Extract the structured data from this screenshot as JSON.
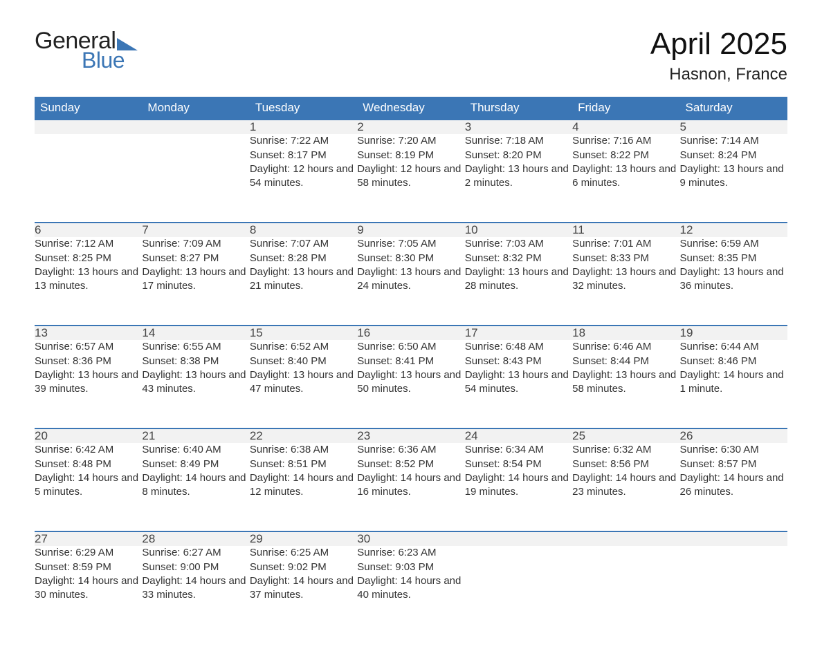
{
  "brand": {
    "word1": "General",
    "word2": "Blue",
    "color_dark": "#222222",
    "color_blue": "#3b76b5"
  },
  "title": {
    "month": "April 2025",
    "location": "Hasnon, France"
  },
  "colors": {
    "header_bg": "#3b76b5",
    "header_text": "#ffffff",
    "daynum_bg": "#f2f2f2",
    "daynum_border": "#3b76b5",
    "body_text": "#333333",
    "page_bg": "#ffffff"
  },
  "fonts": {
    "family": "Segoe UI, Arial, sans-serif",
    "title_size_pt": 33,
    "location_size_pt": 18,
    "header_size_pt": 13,
    "daynum_size_pt": 13,
    "cell_size_pt": 11
  },
  "weekdays": [
    "Sunday",
    "Monday",
    "Tuesday",
    "Wednesday",
    "Thursday",
    "Friday",
    "Saturday"
  ],
  "weeks": [
    [
      {
        "n": "",
        "sr": "",
        "ss": "",
        "dl": ""
      },
      {
        "n": "",
        "sr": "",
        "ss": "",
        "dl": ""
      },
      {
        "n": "1",
        "sr": "Sunrise: 7:22 AM",
        "ss": "Sunset: 8:17 PM",
        "dl": "Daylight: 12 hours and 54 minutes."
      },
      {
        "n": "2",
        "sr": "Sunrise: 7:20 AM",
        "ss": "Sunset: 8:19 PM",
        "dl": "Daylight: 12 hours and 58 minutes."
      },
      {
        "n": "3",
        "sr": "Sunrise: 7:18 AM",
        "ss": "Sunset: 8:20 PM",
        "dl": "Daylight: 13 hours and 2 minutes."
      },
      {
        "n": "4",
        "sr": "Sunrise: 7:16 AM",
        "ss": "Sunset: 8:22 PM",
        "dl": "Daylight: 13 hours and 6 minutes."
      },
      {
        "n": "5",
        "sr": "Sunrise: 7:14 AM",
        "ss": "Sunset: 8:24 PM",
        "dl": "Daylight: 13 hours and 9 minutes."
      }
    ],
    [
      {
        "n": "6",
        "sr": "Sunrise: 7:12 AM",
        "ss": "Sunset: 8:25 PM",
        "dl": "Daylight: 13 hours and 13 minutes."
      },
      {
        "n": "7",
        "sr": "Sunrise: 7:09 AM",
        "ss": "Sunset: 8:27 PM",
        "dl": "Daylight: 13 hours and 17 minutes."
      },
      {
        "n": "8",
        "sr": "Sunrise: 7:07 AM",
        "ss": "Sunset: 8:28 PM",
        "dl": "Daylight: 13 hours and 21 minutes."
      },
      {
        "n": "9",
        "sr": "Sunrise: 7:05 AM",
        "ss": "Sunset: 8:30 PM",
        "dl": "Daylight: 13 hours and 24 minutes."
      },
      {
        "n": "10",
        "sr": "Sunrise: 7:03 AM",
        "ss": "Sunset: 8:32 PM",
        "dl": "Daylight: 13 hours and 28 minutes."
      },
      {
        "n": "11",
        "sr": "Sunrise: 7:01 AM",
        "ss": "Sunset: 8:33 PM",
        "dl": "Daylight: 13 hours and 32 minutes."
      },
      {
        "n": "12",
        "sr": "Sunrise: 6:59 AM",
        "ss": "Sunset: 8:35 PM",
        "dl": "Daylight: 13 hours and 36 minutes."
      }
    ],
    [
      {
        "n": "13",
        "sr": "Sunrise: 6:57 AM",
        "ss": "Sunset: 8:36 PM",
        "dl": "Daylight: 13 hours and 39 minutes."
      },
      {
        "n": "14",
        "sr": "Sunrise: 6:55 AM",
        "ss": "Sunset: 8:38 PM",
        "dl": "Daylight: 13 hours and 43 minutes."
      },
      {
        "n": "15",
        "sr": "Sunrise: 6:52 AM",
        "ss": "Sunset: 8:40 PM",
        "dl": "Daylight: 13 hours and 47 minutes."
      },
      {
        "n": "16",
        "sr": "Sunrise: 6:50 AM",
        "ss": "Sunset: 8:41 PM",
        "dl": "Daylight: 13 hours and 50 minutes."
      },
      {
        "n": "17",
        "sr": "Sunrise: 6:48 AM",
        "ss": "Sunset: 8:43 PM",
        "dl": "Daylight: 13 hours and 54 minutes."
      },
      {
        "n": "18",
        "sr": "Sunrise: 6:46 AM",
        "ss": "Sunset: 8:44 PM",
        "dl": "Daylight: 13 hours and 58 minutes."
      },
      {
        "n": "19",
        "sr": "Sunrise: 6:44 AM",
        "ss": "Sunset: 8:46 PM",
        "dl": "Daylight: 14 hours and 1 minute."
      }
    ],
    [
      {
        "n": "20",
        "sr": "Sunrise: 6:42 AM",
        "ss": "Sunset: 8:48 PM",
        "dl": "Daylight: 14 hours and 5 minutes."
      },
      {
        "n": "21",
        "sr": "Sunrise: 6:40 AM",
        "ss": "Sunset: 8:49 PM",
        "dl": "Daylight: 14 hours and 8 minutes."
      },
      {
        "n": "22",
        "sr": "Sunrise: 6:38 AM",
        "ss": "Sunset: 8:51 PM",
        "dl": "Daylight: 14 hours and 12 minutes."
      },
      {
        "n": "23",
        "sr": "Sunrise: 6:36 AM",
        "ss": "Sunset: 8:52 PM",
        "dl": "Daylight: 14 hours and 16 minutes."
      },
      {
        "n": "24",
        "sr": "Sunrise: 6:34 AM",
        "ss": "Sunset: 8:54 PM",
        "dl": "Daylight: 14 hours and 19 minutes."
      },
      {
        "n": "25",
        "sr": "Sunrise: 6:32 AM",
        "ss": "Sunset: 8:56 PM",
        "dl": "Daylight: 14 hours and 23 minutes."
      },
      {
        "n": "26",
        "sr": "Sunrise: 6:30 AM",
        "ss": "Sunset: 8:57 PM",
        "dl": "Daylight: 14 hours and 26 minutes."
      }
    ],
    [
      {
        "n": "27",
        "sr": "Sunrise: 6:29 AM",
        "ss": "Sunset: 8:59 PM",
        "dl": "Daylight: 14 hours and 30 minutes."
      },
      {
        "n": "28",
        "sr": "Sunrise: 6:27 AM",
        "ss": "Sunset: 9:00 PM",
        "dl": "Daylight: 14 hours and 33 minutes."
      },
      {
        "n": "29",
        "sr": "Sunrise: 6:25 AM",
        "ss": "Sunset: 9:02 PM",
        "dl": "Daylight: 14 hours and 37 minutes."
      },
      {
        "n": "30",
        "sr": "Sunrise: 6:23 AM",
        "ss": "Sunset: 9:03 PM",
        "dl": "Daylight: 14 hours and 40 minutes."
      },
      {
        "n": "",
        "sr": "",
        "ss": "",
        "dl": ""
      },
      {
        "n": "",
        "sr": "",
        "ss": "",
        "dl": ""
      },
      {
        "n": "",
        "sr": "",
        "ss": "",
        "dl": ""
      }
    ]
  ]
}
